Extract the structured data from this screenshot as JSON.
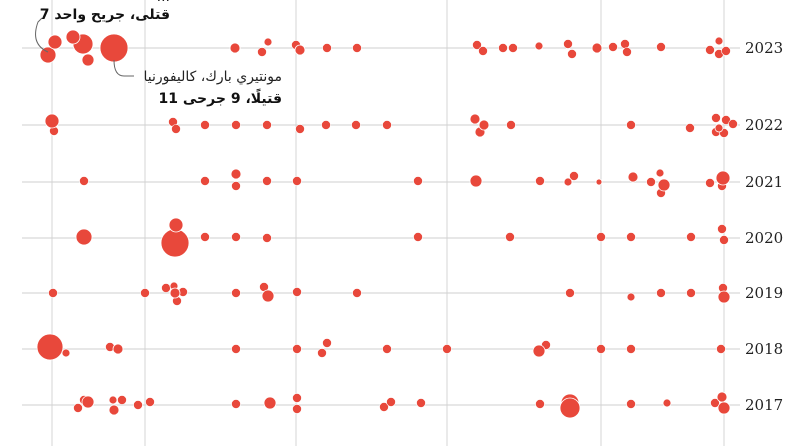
{
  "chart_data": {
    "type": "scatter",
    "encoding": "bubble size = number of victims",
    "point_color": "#e8483b",
    "years": [
      {
        "year": "2023",
        "label": "2023",
        "bubbles": [
          [
            5,
            14
          ],
          [
            -5,
            10
          ],
          [
            -14,
            8
          ],
          [
            -7,
            7
          ],
          [
            -2,
            6
          ],
          [
            0,
            7
          ],
          [
            3,
            5
          ],
          [
            -2,
            4
          ],
          [
            0,
            5
          ],
          [
            3,
            4
          ],
          [
            -3,
            5
          ],
          [
            1,
            4
          ]
        ]
      },
      {
        "year": "2022",
        "label": "2022",
        "bubbles": [
          [
            0,
            7
          ],
          [
            -1,
            5
          ],
          [
            -3,
            5
          ],
          [
            2,
            5
          ],
          [
            0,
            4
          ]
        ]
      },
      {
        "year": "2021",
        "label": "2021",
        "bubbles": [
          [
            -1,
            5
          ],
          [
            -2,
            6
          ],
          [
            -1,
            4
          ],
          [
            0,
            3
          ],
          [
            -2,
            5
          ],
          [
            3,
            4
          ],
          [
            2,
            6
          ],
          [
            1,
            7
          ]
        ]
      },
      {
        "year": "2020",
        "label": "2020",
        "bubbles": [
          [
            -6,
            8
          ],
          [
            0,
            14
          ],
          [
            1,
            7
          ]
        ]
      },
      {
        "year": "2019",
        "label": "2019",
        "bubbles": [
          [
            1,
            4
          ],
          [
            0,
            5
          ],
          [
            0,
            6
          ],
          [
            1,
            4
          ],
          [
            -2,
            6
          ]
        ]
      },
      {
        "year": "2018",
        "label": "2018",
        "bubbles": [
          [
            -9,
            13
          ],
          [
            -2,
            4
          ],
          [
            1,
            5
          ],
          [
            0,
            6
          ]
        ]
      },
      {
        "year": "2017",
        "label": "2017",
        "bubbles": [
          [
            1,
            4
          ],
          [
            -3,
            6
          ],
          [
            0,
            5
          ],
          [
            1,
            6
          ],
          [
            -4,
            9
          ],
          [
            -3,
            10
          ],
          [
            4,
            5
          ],
          [
            0,
            6
          ],
          [
            1,
            4
          ]
        ]
      }
    ],
    "annotations": [
      {
        "id": "a1",
        "lines": [
          "...",
          "7 قتلى، جريح واحد"
        ]
      },
      {
        "id": "a2",
        "lines": [
          "مونتيري بارك، كاليفورنيا",
          "11 قتيلًا، 9 جرحى"
        ]
      }
    ]
  }
}
